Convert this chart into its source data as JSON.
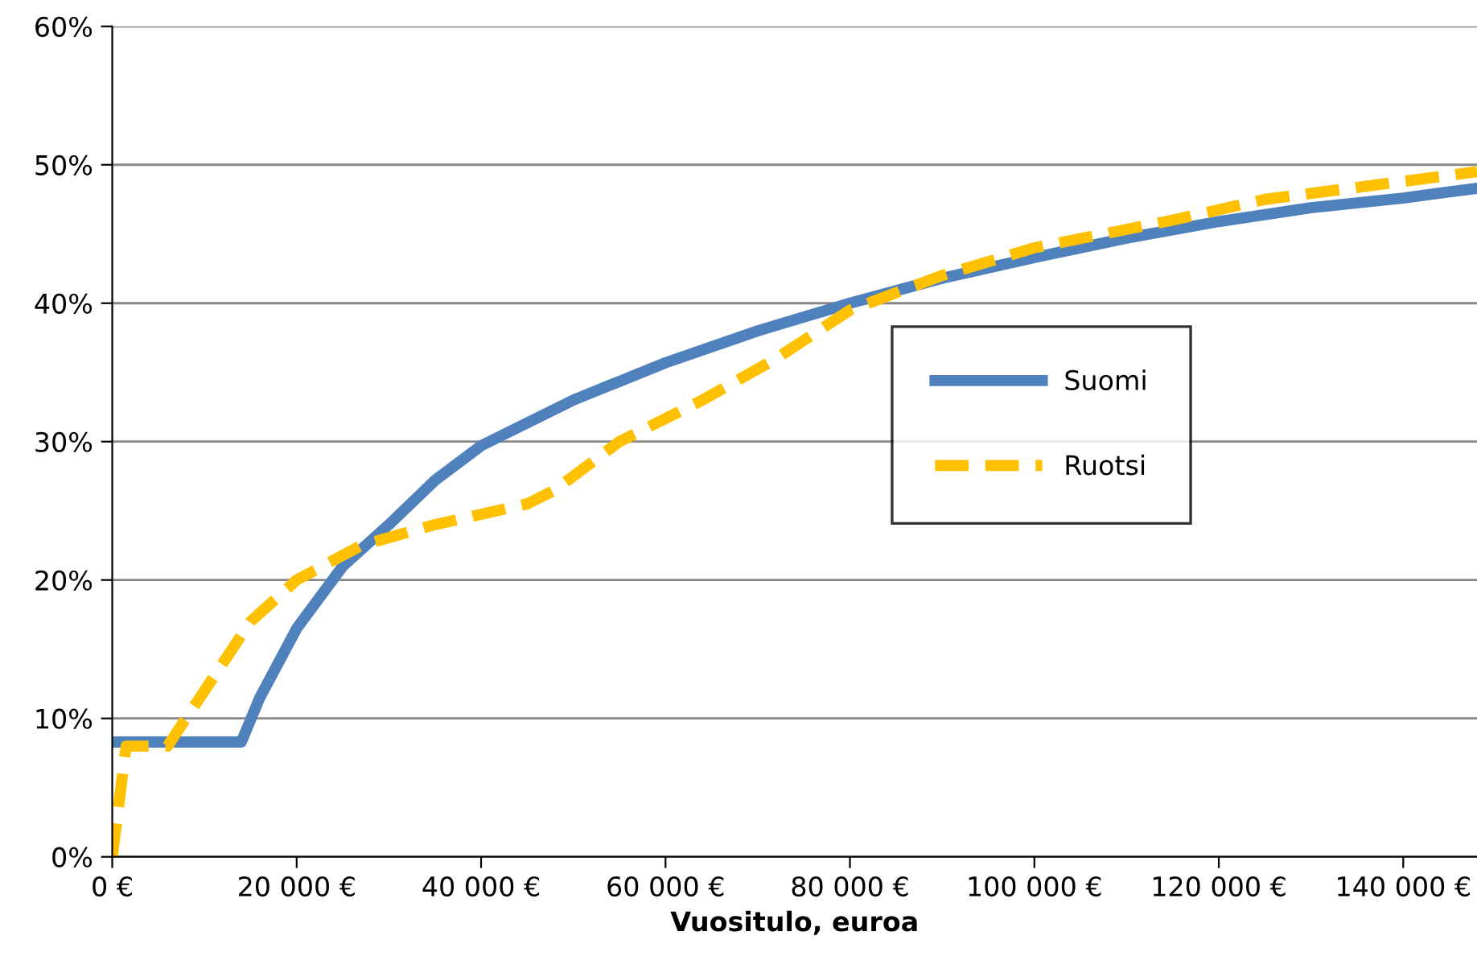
{
  "chart_data": {
    "type": "line",
    "xlabel": "Vuositulo, euroa",
    "xlim": [
      0,
      148000
    ],
    "xticks": [
      {
        "value": 0,
        "label": "0 €"
      },
      {
        "value": 20000,
        "label": "20 000 €"
      },
      {
        "value": 40000,
        "label": "40 000 €"
      },
      {
        "value": 60000,
        "label": "60 000 €"
      },
      {
        "value": 80000,
        "label": "80 000 €"
      },
      {
        "value": 100000,
        "label": "100 000 €"
      },
      {
        "value": 120000,
        "label": "120 000 €"
      },
      {
        "value": 140000,
        "label": "140 000 €"
      }
    ],
    "ylim": [
      0,
      60
    ],
    "yticks": [
      {
        "value": 0,
        "label": "0%"
      },
      {
        "value": 10,
        "label": "10%"
      },
      {
        "value": 20,
        "label": "20%"
      },
      {
        "value": 30,
        "label": "30%"
      },
      {
        "value": 40,
        "label": "40%"
      },
      {
        "value": 50,
        "label": "50%"
      },
      {
        "value": 60,
        "label": "60%"
      }
    ],
    "grid": "y",
    "legend": "right",
    "marker": "none",
    "series": [
      {
        "name": "Suomi",
        "color": "#4f81bd",
        "line_style": "solid",
        "x": [
          0,
          14000,
          16000,
          20000,
          25000,
          30000,
          35000,
          40000,
          50000,
          60000,
          70000,
          80000,
          90000,
          100000,
          110000,
          120000,
          130000,
          140000,
          148000
        ],
        "values": [
          8.3,
          8.3,
          11.5,
          16.5,
          21,
          24,
          27.2,
          29.7,
          33,
          35.7,
          38,
          40,
          41.8,
          43.3,
          44.7,
          45.9,
          46.9,
          47.6,
          48.3
        ]
      },
      {
        "name": "Ruotsi",
        "color": "#ffc000",
        "line_style": "dashed",
        "x": [
          0,
          1500,
          3000,
          6000,
          10000,
          15000,
          20000,
          27000,
          35000,
          45000,
          48000,
          55000,
          64000,
          72000,
          80000,
          90000,
          100000,
          115000,
          125000,
          140000,
          148000
        ],
        "values": [
          0,
          8,
          8,
          8,
          12,
          17,
          20,
          22.5,
          24,
          25.5,
          26.5,
          30,
          33,
          36,
          39.5,
          42,
          44,
          46,
          47.5,
          48.8,
          49.5
        ]
      }
    ]
  }
}
